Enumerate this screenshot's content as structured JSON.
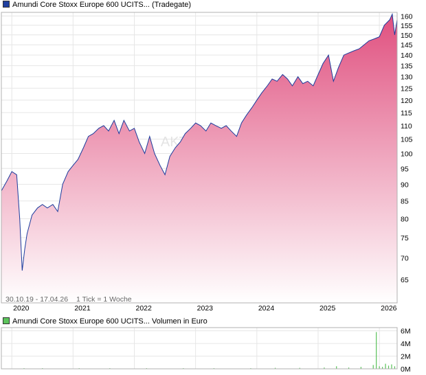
{
  "price_chart": {
    "title": "Amundi Core Stoxx Europe 600 UCITS... (Tradegate)",
    "legend_color": "#1f3f9f",
    "watermark": "AKTIEN",
    "date_range": "30.10.19 - 17.04.26",
    "tick_info": "1 Tick = 1 Woche",
    "line_color": "#1a3a9c",
    "fill_top_color": "#e0507f",
    "fill_bottom_color": "#ffffff"
  },
  "volume_chart": {
    "title": "Amundi Core Stoxx Europe 600 UCITS... Volumen in Euro",
    "legend_color": "#5cc45c",
    "bar_color": "#58c058"
  },
  "chart_data": [
    {
      "type": "area",
      "title": "Amundi Core Stoxx Europe 600 UCITS... (Tradegate)",
      "x_unit": "year",
      "x_start": 2019.83,
      "x_end": 2026.29,
      "x_ticks": [
        "2020",
        "2021",
        "2022",
        "2023",
        "2024",
        "2025",
        "2026"
      ],
      "y_ticks": [
        65,
        70,
        75,
        80,
        85,
        90,
        95,
        100,
        105,
        110,
        115,
        120,
        125,
        130,
        135,
        140,
        145,
        150,
        155,
        160
      ],
      "scale": "log",
      "ylim": [
        60,
        162
      ],
      "x": [
        2019.83,
        2019.92,
        2020.0,
        2020.08,
        2020.13,
        2020.17,
        2020.21,
        2020.25,
        2020.33,
        2020.42,
        2020.5,
        2020.58,
        2020.67,
        2020.75,
        2020.83,
        2020.92,
        2021.0,
        2021.08,
        2021.17,
        2021.25,
        2021.33,
        2021.42,
        2021.5,
        2021.58,
        2021.67,
        2021.75,
        2021.83,
        2021.92,
        2022.0,
        2022.08,
        2022.17,
        2022.25,
        2022.33,
        2022.42,
        2022.5,
        2022.58,
        2022.67,
        2022.75,
        2022.83,
        2022.92,
        2023.0,
        2023.08,
        2023.17,
        2023.25,
        2023.33,
        2023.42,
        2023.5,
        2023.58,
        2023.67,
        2023.75,
        2023.83,
        2023.92,
        2024.0,
        2024.08,
        2024.17,
        2024.25,
        2024.33,
        2024.42,
        2024.5,
        2024.58,
        2024.67,
        2024.75,
        2024.83,
        2024.92,
        2025.0,
        2025.08,
        2025.17,
        2025.25,
        2025.33,
        2025.42,
        2025.5,
        2025.58,
        2025.67,
        2025.75,
        2025.83,
        2025.92,
        2026.0,
        2026.08,
        2026.17,
        2026.21,
        2026.25,
        2026.29
      ],
      "y": [
        88,
        91,
        94,
        93,
        80,
        67,
        72,
        76,
        81,
        83,
        84,
        83,
        84,
        82,
        90,
        94,
        96,
        98,
        102,
        106,
        107,
        109,
        110,
        108,
        112,
        107,
        112,
        108,
        109,
        104,
        100,
        106,
        100,
        96,
        93,
        99,
        102,
        104,
        107,
        109,
        111,
        110,
        108,
        111,
        110,
        109,
        110,
        108,
        106,
        111,
        114,
        117,
        120,
        123,
        126,
        129,
        128,
        131,
        129,
        126,
        130,
        127,
        128,
        126,
        131,
        136,
        140,
        128,
        134,
        140,
        141,
        142,
        143,
        145,
        147,
        148,
        149,
        155,
        158,
        161,
        150,
        158
      ]
    },
    {
      "type": "bar",
      "title": "Amundi Core Stoxx Europe 600 UCITS... Volumen in Euro",
      "x_unit": "year",
      "y_ticks": [
        "0M",
        "2M",
        "4M",
        "6M"
      ],
      "ylim": [
        0,
        6.5
      ],
      "y_unit": "M",
      "x": [
        2020.2,
        2020.5,
        2021.1,
        2021.6,
        2022.2,
        2022.8,
        2023.3,
        2023.9,
        2024.3,
        2024.7,
        2025.1,
        2025.3,
        2025.5,
        2025.7,
        2025.9,
        2025.95,
        2026.0,
        2026.05,
        2026.1,
        2026.15,
        2026.2,
        2026.25
      ],
      "values": [
        0.1,
        0.1,
        0.1,
        0.1,
        0.1,
        0.1,
        0.1,
        0.1,
        0.15,
        0.15,
        0.2,
        0.4,
        0.2,
        0.3,
        0.6,
        5.8,
        0.4,
        0.3,
        0.8,
        0.5,
        0.7,
        0.4
      ]
    }
  ]
}
